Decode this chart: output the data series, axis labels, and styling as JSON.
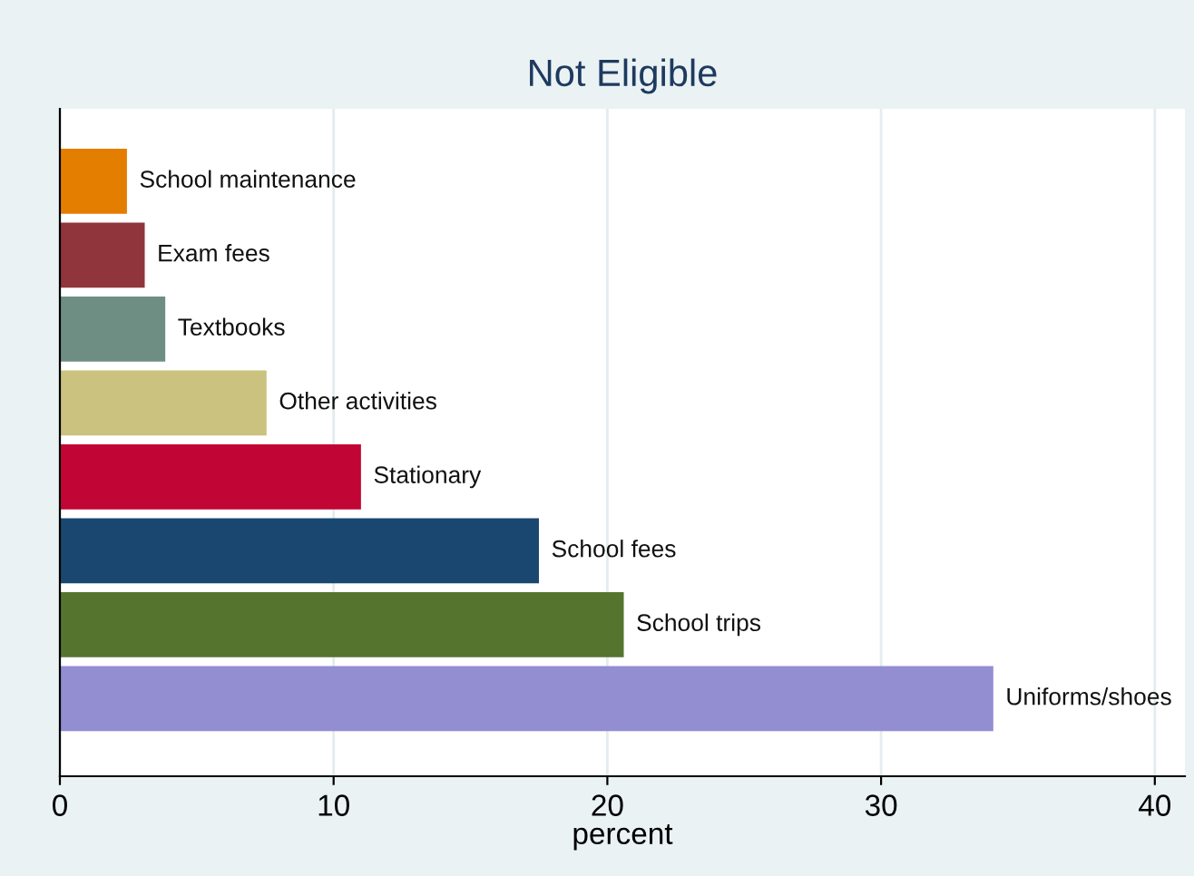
{
  "chart_data": {
    "type": "bar",
    "orientation": "horizontal",
    "title": "Not Eligible",
    "xlabel": "percent",
    "categories": [
      "School maintenance",
      "Exam fees",
      "Textbooks",
      "Other activities",
      "Stationary",
      "School fees",
      "School trips",
      "Uniforms/shoes"
    ],
    "values": [
      2.45,
      3.1,
      3.85,
      7.55,
      11.0,
      17.5,
      20.6,
      34.1
    ],
    "colors": [
      "#e37e00",
      "#90353b",
      "#6e8e84",
      "#cac27e",
      "#c10534",
      "#1a476f",
      "#55752f",
      "#938dd2"
    ],
    "xlim": [
      0,
      41.1
    ],
    "xticks": [
      0,
      10,
      20,
      30,
      40
    ],
    "grid": "x",
    "tick_labels": "x",
    "legend": false
  }
}
